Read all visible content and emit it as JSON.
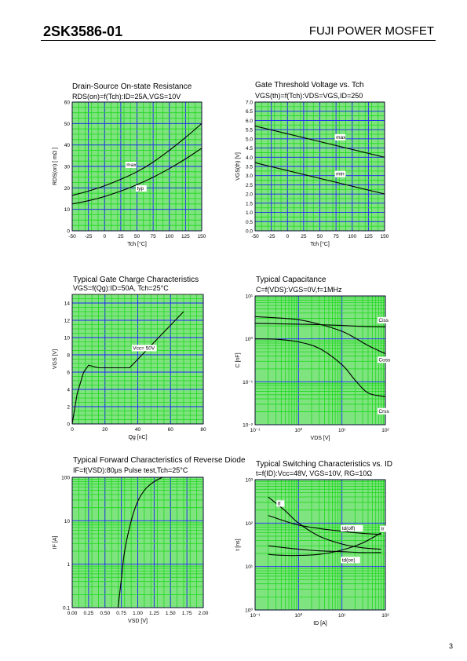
{
  "header": {
    "part_number": "2SK3586-01",
    "product_line": "FUJI POWER MOSFET"
  },
  "page_number": "3",
  "chart_data": [
    {
      "id": "rds",
      "type": "line",
      "title": "Drain-Source On-state Resistance",
      "subtitle": "RDS(on)=f(Tch):ID=25A,VGS=10V",
      "xlabel": "Tch [°C]",
      "ylabel": "RDS(on) [ mΩ ]",
      "xscale": "linear",
      "yscale": "linear",
      "xlim": [
        -50,
        150
      ],
      "ylim": [
        0,
        60
      ],
      "xticks": [
        -50,
        -25,
        0,
        25,
        50,
        75,
        100,
        125,
        150
      ],
      "yticks": [
        0,
        10,
        20,
        30,
        40,
        50,
        60
      ],
      "ytick_labels": [
        "0",
        "10",
        "20",
        "30",
        "40",
        "50",
        "60"
      ],
      "grid": true,
      "series": [
        {
          "name": "max",
          "x": [
            -50,
            -25,
            0,
            25,
            50,
            75,
            100,
            125,
            150
          ],
          "y": [
            16.5,
            18.5,
            21,
            24,
            27.5,
            32,
            37.5,
            43.5,
            50
          ]
        },
        {
          "name": "typ",
          "x": [
            -50,
            -25,
            0,
            25,
            50,
            75,
            100,
            125,
            150
          ],
          "y": [
            12.5,
            14,
            16,
            18.5,
            21.5,
            25,
            29,
            33.5,
            38.5
          ]
        }
      ],
      "annotations": [
        {
          "text": "max",
          "x": 34,
          "y": 30
        },
        {
          "text": "typ",
          "x": 50,
          "y": 19
        }
      ]
    },
    {
      "id": "vth",
      "type": "line",
      "title": "Gate Threshold Voltage vs. Tch",
      "subtitle": "VGS(th)=f(Tch):VDS=VGS,ID=250",
      "xlabel": "Tch [°C]",
      "ylabel": "VGS(th) [V]",
      "xscale": "linear",
      "yscale": "linear",
      "xlim": [
        -50,
        150
      ],
      "ylim": [
        0,
        7
      ],
      "xticks": [
        -50,
        -25,
        0,
        25,
        50,
        75,
        100,
        125,
        150
      ],
      "yticks": [
        0,
        0.5,
        1,
        1.5,
        2,
        2.5,
        3,
        3.5,
        4,
        4.5,
        5,
        5.5,
        6,
        6.5,
        7
      ],
      "ytick_labels": [
        "0.0",
        "0.5",
        "1.0",
        "1.5",
        "2.0",
        "2.5",
        "3.0",
        "3.5",
        "4.0",
        "4.5",
        "5.0",
        "5.5",
        "6.0",
        "6.5",
        "7.0"
      ],
      "grid": true,
      "series": [
        {
          "name": "max",
          "x": [
            -50,
            150
          ],
          "y": [
            5.7,
            4.0
          ]
        },
        {
          "name": "min",
          "x": [
            -50,
            150
          ],
          "y": [
            3.7,
            2.0
          ]
        }
      ],
      "annotations": [
        {
          "text": "max",
          "x": 75,
          "y": 5.0
        },
        {
          "text": "min",
          "x": 75,
          "y": 3.0
        }
      ]
    },
    {
      "id": "qg",
      "type": "line",
      "title": "Typical Gate Charge Characteristics",
      "subtitle": "VGS=f(Qg):ID=50A, Tch=25°C",
      "xlabel": "Qg [nC]",
      "ylabel": "VGS [V]",
      "xscale": "linear",
      "yscale": "linear",
      "xlim": [
        0,
        80
      ],
      "ylim": [
        0,
        15
      ],
      "xticks": [
        0,
        20,
        40,
        60,
        80
      ],
      "yticks": [
        0,
        2,
        4,
        6,
        8,
        10,
        12,
        14
      ],
      "ytick_labels": [
        "0",
        "2",
        "4",
        "6",
        "8",
        "10",
        "12",
        "14"
      ],
      "grid": true,
      "series": [
        {
          "name": "Vcc= 50V",
          "x": [
            0,
            3,
            7,
            10,
            16,
            35,
            68
          ],
          "y": [
            0,
            3.5,
            6,
            6.8,
            6.5,
            6.5,
            13
          ]
        }
      ],
      "annotations": [
        {
          "text": "Vcc= 50V",
          "x": 37,
          "y": 8.6
        }
      ]
    },
    {
      "id": "cap",
      "type": "line",
      "title": "Typical Capacitance",
      "subtitle": "C=f(VDS):VGS=0V,f=1MHz",
      "xlabel": "VDS [V]",
      "ylabel": "C [nF]",
      "xscale": "log",
      "yscale": "log",
      "xlim": [
        0.1,
        100
      ],
      "ylim": [
        0.01,
        10
      ],
      "xticks": [
        0.1,
        1,
        10,
        100
      ],
      "xtick_labels": [
        "10⁻¹",
        "10⁰",
        "10¹",
        "10²"
      ],
      "yticks": [
        0.01,
        0.1,
        1,
        10
      ],
      "ytick_labels": [
        "10⁻²",
        "10⁻¹",
        "10⁰",
        "10¹"
      ],
      "grid": true,
      "series": [
        {
          "name": "Ciss",
          "x": [
            0.1,
            0.3,
            1,
            3,
            10,
            30,
            100
          ],
          "y": [
            2.3,
            2.25,
            2.2,
            2.15,
            2.05,
            1.95,
            1.9
          ]
        },
        {
          "name": "Coss",
          "x": [
            0.1,
            0.3,
            1,
            3,
            10,
            20,
            40,
            100
          ],
          "y": [
            3.3,
            3.1,
            2.8,
            2.2,
            1.5,
            1.05,
            0.7,
            0.45
          ]
        },
        {
          "name": "Crss",
          "x": [
            0.1,
            0.3,
            1,
            3,
            10,
            20,
            40,
            100
          ],
          "y": [
            1.0,
            0.98,
            0.85,
            0.6,
            0.25,
            0.11,
            0.055,
            0.045
          ]
        }
      ],
      "annotations": [
        {
          "text": "Ciss",
          "x": 70,
          "y": 2.5
        },
        {
          "text": "Coss",
          "x": 70,
          "y": 0.3
        },
        {
          "text": "Crss",
          "x": 70,
          "y": 0.019
        }
      ]
    },
    {
      "id": "diode",
      "type": "line",
      "title": "Typical Forward Characteristics of Reverse Diode",
      "subtitle": "IF=f(VSD):80μs Pulse test,Tch=25°C",
      "xlabel": "VSD [V]",
      "ylabel": "IF [A]",
      "xscale": "linear",
      "yscale": "log",
      "xlim": [
        0,
        2
      ],
      "ylim": [
        0.1,
        100
      ],
      "xticks": [
        0,
        0.25,
        0.5,
        0.75,
        1,
        1.25,
        1.5,
        1.75,
        2
      ],
      "xtick_labels": [
        "0.00",
        "0.25",
        "0.50",
        "0.75",
        "1.00",
        "1.25",
        "1.50",
        "1.75",
        "2.00"
      ],
      "yticks": [
        0.1,
        1,
        10,
        100
      ],
      "ytick_labels": [
        "0.1",
        "1",
        "10",
        "100"
      ],
      "grid": true,
      "series": [
        {
          "name": "IF",
          "x": [
            0.7,
            0.75,
            0.8,
            0.9,
            1.0,
            1.1,
            1.2,
            1.3,
            1.38
          ],
          "y": [
            0.1,
            0.45,
            2,
            10,
            28,
            50,
            70,
            88,
            100
          ]
        }
      ],
      "annotations": []
    },
    {
      "id": "switching",
      "type": "line",
      "title": "Typical Switching Characteristics vs. ID",
      "subtitle": "t=f(ID):Vcc=48V, VGS=10V, RG=10Ω",
      "xlabel": "ID [A]",
      "ylabel": "t [ns]",
      "xscale": "log",
      "yscale": "log",
      "xlim": [
        0.1,
        100
      ],
      "ylim": [
        1,
        1000
      ],
      "xticks": [
        0.1,
        1,
        10,
        100
      ],
      "xtick_labels": [
        "10⁻¹",
        "10⁰",
        "10¹",
        "10²"
      ],
      "yticks": [
        1,
        10,
        100,
        1000
      ],
      "ytick_labels": [
        "10⁰",
        "10¹",
        "10²",
        "10³"
      ],
      "grid": true,
      "series": [
        {
          "name": "tf",
          "x": [
            0.2,
            0.5,
            1,
            3,
            10,
            30,
            80
          ],
          "y": [
            400,
            190,
            100,
            50,
            33,
            27,
            25
          ]
        },
        {
          "name": "td(off)",
          "x": [
            0.2,
            0.5,
            1,
            3,
            10,
            30,
            80
          ],
          "y": [
            150,
            110,
            90,
            75,
            65,
            58,
            55
          ]
        },
        {
          "name": "tr",
          "x": [
            0.2,
            0.5,
            1,
            3,
            10,
            30,
            80
          ],
          "y": [
            19,
            18,
            18,
            19,
            24,
            35,
            60
          ]
        },
        {
          "name": "td(on)",
          "x": [
            0.2,
            0.5,
            1,
            3,
            10,
            30,
            80
          ],
          "y": [
            30,
            27,
            25,
            23,
            22,
            21,
            21
          ]
        }
      ],
      "annotations": [
        {
          "text": "tf",
          "x": 0.33,
          "y": 260
        },
        {
          "text": "td(off)",
          "x": 10,
          "y": 70
        },
        {
          "text": "tr",
          "x": 80,
          "y": 68
        },
        {
          "text": "td(on)",
          "x": 10,
          "y": 13
        }
      ]
    }
  ]
}
